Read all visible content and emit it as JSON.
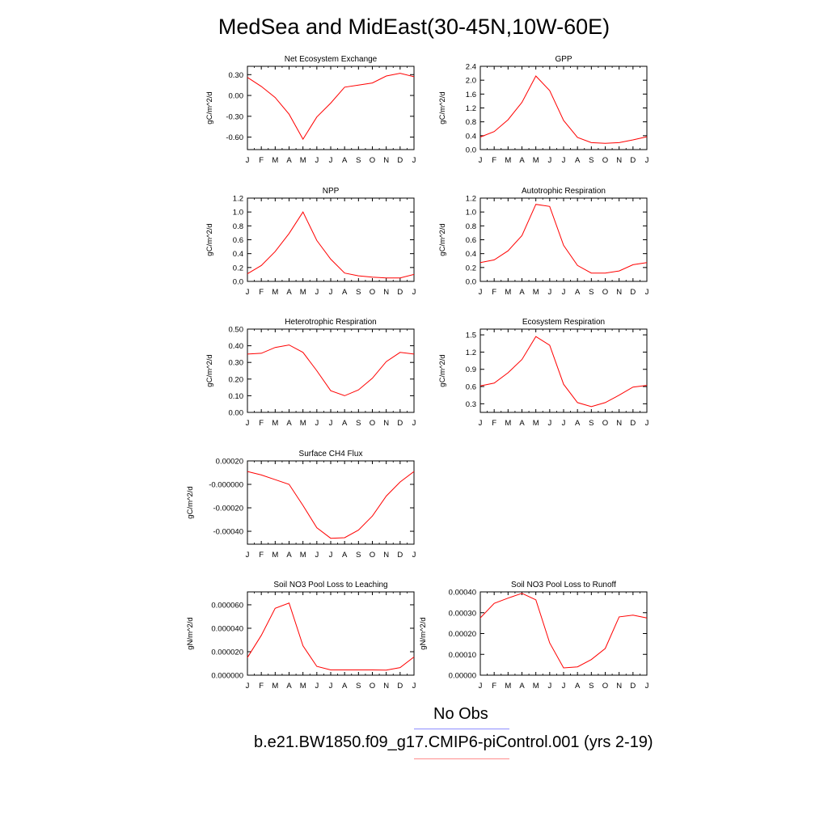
{
  "title": "MedSea and MidEast(30-45N,10W-60E)",
  "colors": {
    "model_line": "#ff0000",
    "obs_legend_line": "#8c8cff",
    "model_legend_line": "#ff8c8c"
  },
  "legend": {
    "obs_label": "No Obs",
    "model_label": "b.e21.BW1850.f09_g17.CMIP6-piControl.001 (yrs 2-19)"
  },
  "chart_data": [
    {
      "type": "line",
      "title": "Net Ecosystem Exchange",
      "ylabel": "gC/m^2/d",
      "categories": [
        "J",
        "F",
        "M",
        "A",
        "M",
        "J",
        "J",
        "A",
        "S",
        "O",
        "N",
        "D",
        "J"
      ],
      "yticks": [
        "0.30",
        "0.00",
        "-0.30",
        "-0.60"
      ],
      "ytick_values": [
        0.3,
        0.0,
        -0.3,
        -0.6
      ],
      "ylim": [
        -0.78,
        0.42
      ],
      "series": [
        {
          "values": [
            0.26,
            0.13,
            -0.03,
            -0.27,
            -0.63,
            -0.31,
            -0.11,
            0.12,
            0.15,
            0.18,
            0.28,
            0.32,
            0.27
          ]
        }
      ]
    },
    {
      "type": "line",
      "title": "GPP",
      "ylabel": "gC/m^2/d",
      "categories": [
        "J",
        "F",
        "M",
        "A",
        "M",
        "J",
        "J",
        "A",
        "S",
        "O",
        "N",
        "D",
        "J"
      ],
      "yticks": [
        "2.4",
        "2.0",
        "1.6",
        "1.2",
        "0.8",
        "0.4",
        "0.0"
      ],
      "ytick_values": [
        2.4,
        2.0,
        1.6,
        1.2,
        0.8,
        0.4,
        0.0
      ],
      "ylim": [
        0.0,
        2.4
      ],
      "series": [
        {
          "values": [
            0.36,
            0.52,
            0.86,
            1.36,
            2.12,
            1.7,
            0.84,
            0.35,
            0.2,
            0.18,
            0.2,
            0.28,
            0.37
          ]
        }
      ]
    },
    {
      "type": "line",
      "title": "NPP",
      "ylabel": "gC/m^2/d",
      "categories": [
        "J",
        "F",
        "M",
        "A",
        "M",
        "J",
        "J",
        "A",
        "S",
        "O",
        "N",
        "D",
        "J"
      ],
      "yticks": [
        "1.2",
        "1.0",
        "0.8",
        "0.6",
        "0.4",
        "0.2",
        "0.0"
      ],
      "ytick_values": [
        1.2,
        1.0,
        0.8,
        0.6,
        0.4,
        0.2,
        0.0
      ],
      "ylim": [
        0.0,
        1.2
      ],
      "series": [
        {
          "values": [
            0.11,
            0.23,
            0.43,
            0.69,
            1.0,
            0.59,
            0.32,
            0.12,
            0.08,
            0.06,
            0.05,
            0.05,
            0.1
          ]
        }
      ]
    },
    {
      "type": "line",
      "title": "Autotrophic Respiration",
      "ylabel": "gC/m^2/d",
      "categories": [
        "J",
        "F",
        "M",
        "A",
        "M",
        "J",
        "J",
        "A",
        "S",
        "O",
        "N",
        "D",
        "J"
      ],
      "yticks": [
        "1.2",
        "1.0",
        "0.8",
        "0.6",
        "0.4",
        "0.2",
        "0.0"
      ],
      "ytick_values": [
        1.2,
        1.0,
        0.8,
        0.6,
        0.4,
        0.2,
        0.0
      ],
      "ylim": [
        0.0,
        1.2
      ],
      "series": [
        {
          "values": [
            0.27,
            0.31,
            0.44,
            0.66,
            1.11,
            1.08,
            0.52,
            0.23,
            0.12,
            0.12,
            0.15,
            0.24,
            0.27
          ]
        }
      ]
    },
    {
      "type": "line",
      "title": "Heterotrophic Respiration",
      "ylabel": "gC/m^2/d",
      "categories": [
        "J",
        "F",
        "M",
        "A",
        "M",
        "J",
        "J",
        "A",
        "S",
        "O",
        "N",
        "D",
        "J"
      ],
      "yticks": [
        "0.50",
        "0.40",
        "0.30",
        "0.20",
        "0.10",
        "0.00"
      ],
      "ytick_values": [
        0.5,
        0.4,
        0.3,
        0.2,
        0.1,
        0.0
      ],
      "ylim": [
        0.0,
        0.5
      ],
      "series": [
        {
          "values": [
            0.35,
            0.355,
            0.39,
            0.405,
            0.36,
            0.25,
            0.13,
            0.1,
            0.135,
            0.205,
            0.305,
            0.36,
            0.35
          ]
        }
      ]
    },
    {
      "type": "line",
      "title": "Ecosystem Respiration",
      "ylabel": "gC/m^2/d",
      "categories": [
        "J",
        "F",
        "M",
        "A",
        "M",
        "J",
        "J",
        "A",
        "S",
        "O",
        "N",
        "D",
        "J"
      ],
      "yticks": [
        "1.5",
        "1.2",
        "0.9",
        "0.6",
        "0.3"
      ],
      "ytick_values": [
        1.5,
        1.2,
        0.9,
        0.6,
        0.3
      ],
      "ylim": [
        0.15,
        1.6
      ],
      "series": [
        {
          "values": [
            0.61,
            0.66,
            0.84,
            1.07,
            1.47,
            1.32,
            0.64,
            0.32,
            0.25,
            0.32,
            0.45,
            0.59,
            0.62
          ]
        }
      ]
    },
    {
      "type": "line",
      "title": "Surface CH4 Flux",
      "ylabel": "gC/m^2/d",
      "categories": [
        "J",
        "F",
        "M",
        "A",
        "M",
        "J",
        "J",
        "A",
        "S",
        "O",
        "N",
        "D",
        "J"
      ],
      "yticks": [
        "0.00020",
        "-0.000000",
        "-0.00020",
        "-0.00040"
      ],
      "ytick_values": [
        0.0002,
        0.0,
        -0.0002,
        -0.0004
      ],
      "ylim": [
        -0.00051,
        0.0002
      ],
      "series": [
        {
          "values": [
            0.00011,
            8e-05,
            4e-05,
            0.0,
            -0.00018,
            -0.00037,
            -0.00046,
            -0.000455,
            -0.00039,
            -0.00027,
            -0.0001,
            2e-05,
            0.00011
          ]
        }
      ]
    },
    {
      "type": "line",
      "title": "Soil NO3 Pool Loss to Leaching",
      "ylabel": "gN/m^2/d",
      "categories": [
        "J",
        "F",
        "M",
        "A",
        "M",
        "J",
        "J",
        "A",
        "S",
        "O",
        "N",
        "D",
        "J"
      ],
      "yticks": [
        "0.000060",
        "0.000040",
        "0.000020",
        "0.000000"
      ],
      "ytick_values": [
        6e-05,
        4e-05,
        2e-05,
        0.0
      ],
      "ylim": [
        0.0,
        7.1e-05
      ],
      "series": [
        {
          "values": [
            1.5e-05,
            3.4e-05,
            5.7e-05,
            6.15e-05,
            2.5e-05,
            7.5e-06,
            4.5e-06,
            4.5e-06,
            4.5e-06,
            4.5e-06,
            4.3e-06,
            6.5e-06,
            1.55e-05
          ]
        }
      ]
    },
    {
      "type": "line",
      "title": "Soil NO3 Pool Loss to Runoff",
      "ylabel": "gN/m^2/d",
      "categories": [
        "J",
        "F",
        "M",
        "A",
        "M",
        "J",
        "J",
        "A",
        "S",
        "O",
        "N",
        "D",
        "J"
      ],
      "yticks": [
        "0.00040",
        "0.00030",
        "0.00020",
        "0.00010",
        "0.00000"
      ],
      "ytick_values": [
        0.0004,
        0.0003,
        0.0002,
        0.0001,
        0.0
      ],
      "ylim": [
        0.0,
        0.0004
      ],
      "series": [
        {
          "values": [
            0.000275,
            0.000345,
            0.00037,
            0.000393,
            0.000362,
            0.000155,
            3.5e-05,
            4e-05,
            7.5e-05,
            0.000128,
            0.00028,
            0.000288,
            0.000275
          ]
        }
      ]
    }
  ]
}
